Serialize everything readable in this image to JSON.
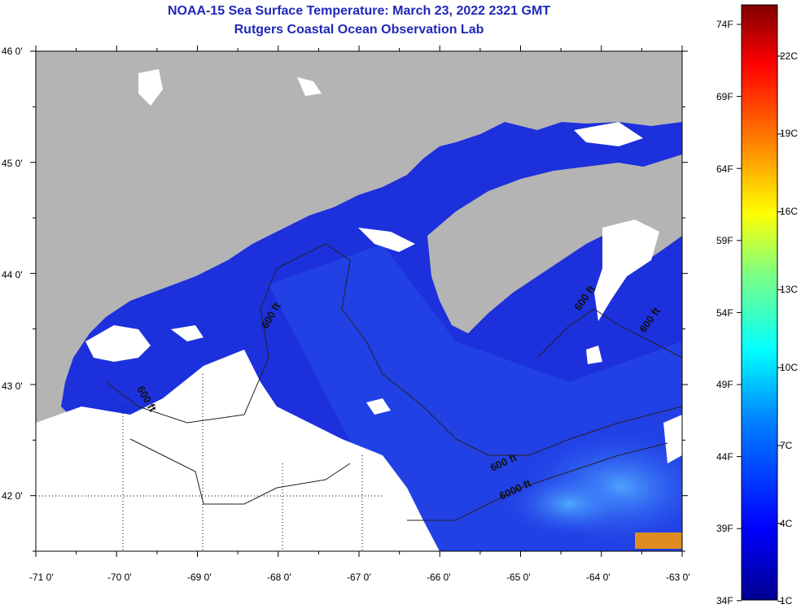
{
  "title": {
    "line1": "NOAA-15 Sea Surface Temperature:  March 23, 2022 2321 GMT",
    "line2": "Rutgers Coastal Ocean Observation Lab"
  },
  "map": {
    "lat_labels": [
      "46 0'",
      "45 0'",
      "44 0'",
      "43 0'",
      "42 0'"
    ],
    "lon_labels": [
      "-71 0'",
      "-70 0'",
      "-69 0'",
      "-68 0'",
      "-67 0'",
      "-66 0'",
      "-65 0'",
      "-64 0'",
      "-63 0'"
    ],
    "lat_range": [
      41.5,
      46.0
    ],
    "lon_range": [
      -71.0,
      -63.0
    ],
    "contour_labels": [
      "600 ft",
      "600 ft",
      "600 ft",
      "600 ft",
      "600 ft",
      "6000 ft"
    ],
    "colors": {
      "land": "#b4b4b4",
      "cloud": "#ffffff",
      "ocean_deep": "#1a2ad8",
      "ocean_shelf": "#2f6ef0",
      "warm_edge": "#ff9a00"
    }
  },
  "colorbar": {
    "f_labels": [
      "74F",
      "69F",
      "64F",
      "59F",
      "54F",
      "49F",
      "44F",
      "39F",
      "34F"
    ],
    "c_labels": [
      "22C",
      "19C",
      "16C",
      "13C",
      "10C",
      "7C",
      "4C",
      "1C"
    ],
    "stops": [
      "#00008f",
      "#0000ff",
      "#0080ff",
      "#00ffff",
      "#80ff80",
      "#ffff00",
      "#ff8000",
      "#ff0000",
      "#800000"
    ]
  }
}
